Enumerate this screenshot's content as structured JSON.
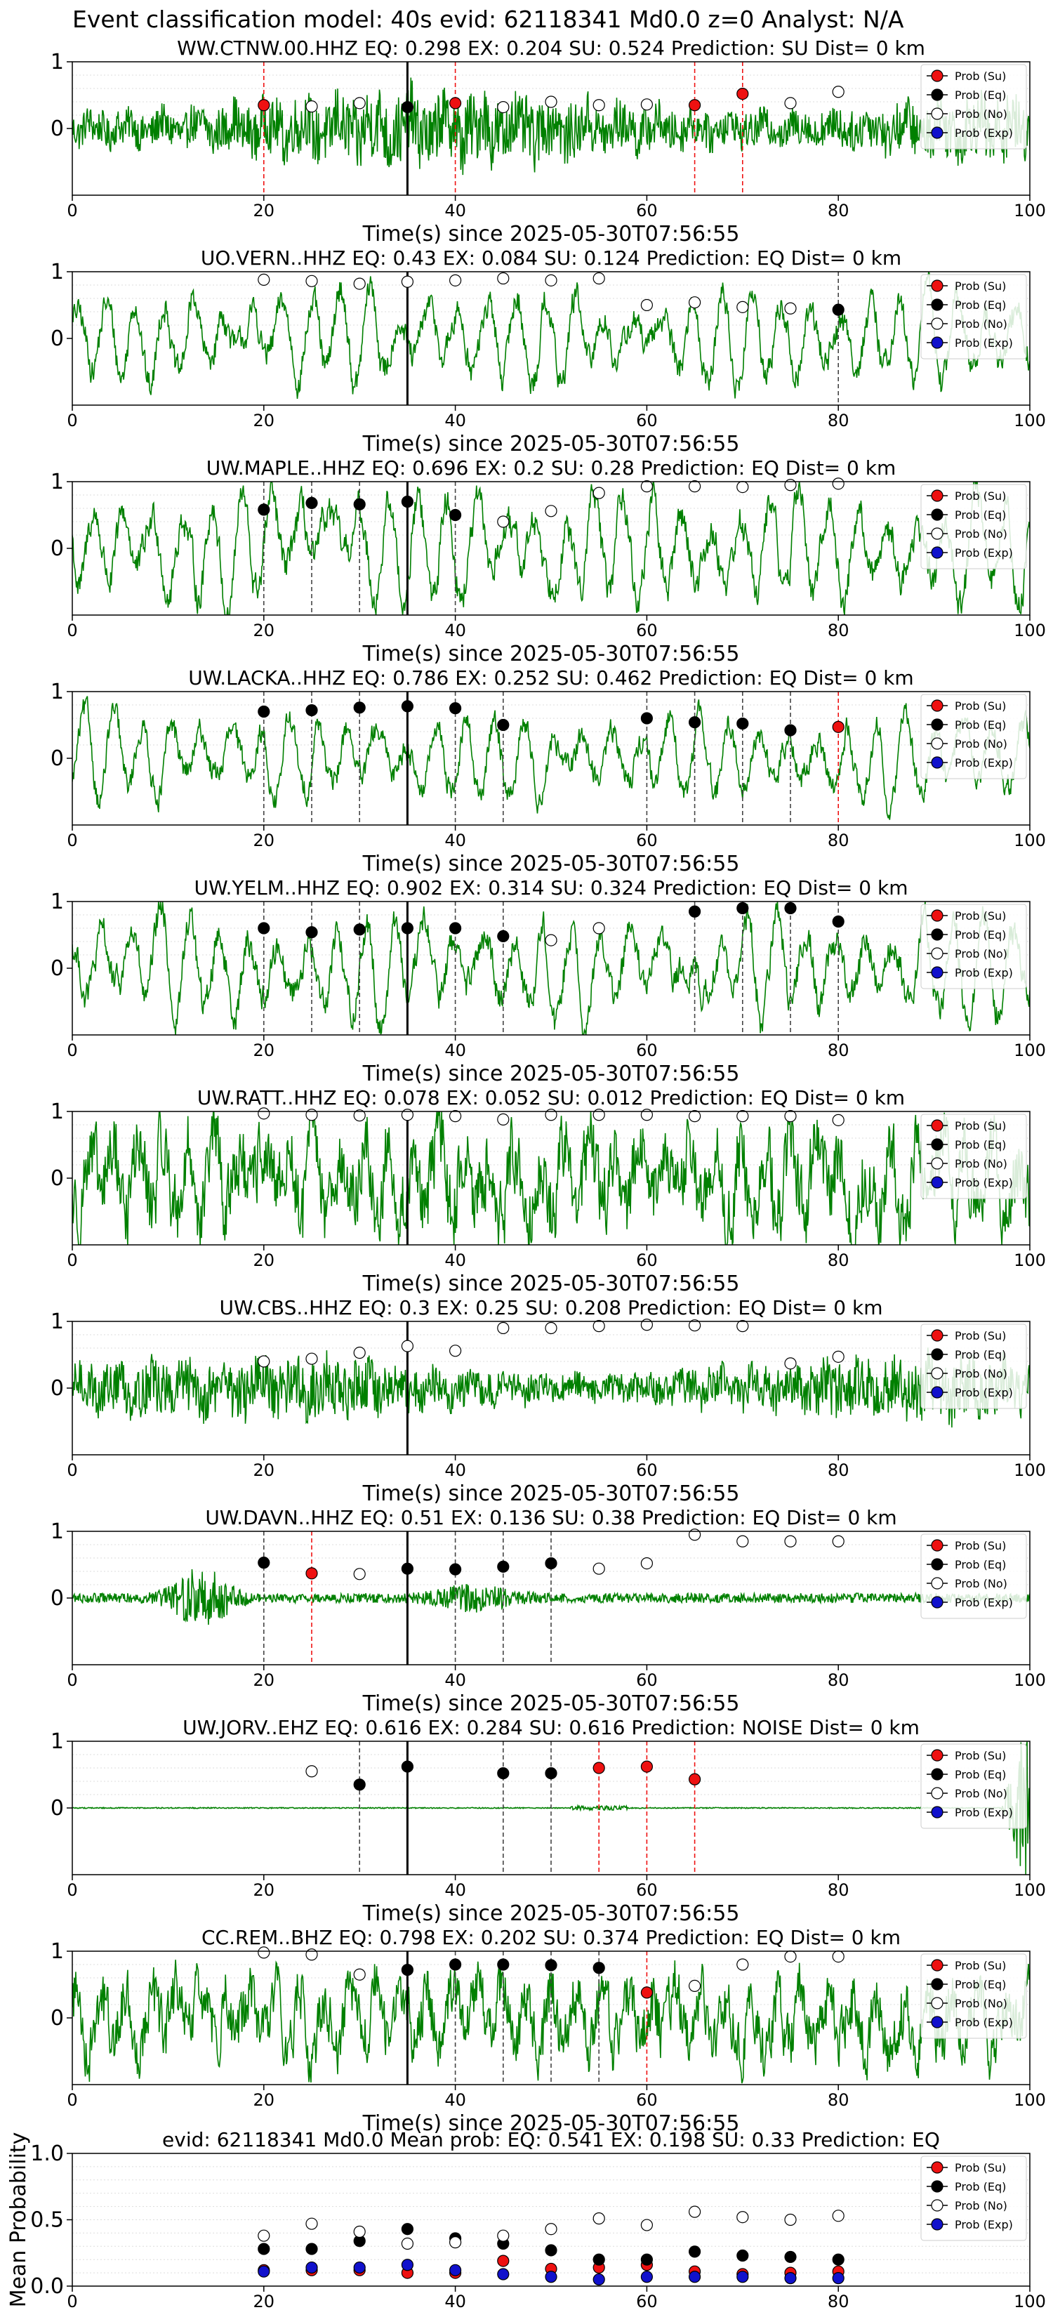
{
  "suptitle": "Event classification model: 40s evid: 62118341 Md0.0 z=0 Analyst: N/A",
  "colors": {
    "waveform": "#008000",
    "su": "#ee1111",
    "eq": "#000000",
    "no": "#ffffff",
    "exp": "#1111cc",
    "su_line": "#ee1111",
    "eq_line": "#444444",
    "arrival": "#000000"
  },
  "legend": {
    "position": "right",
    "entries": [
      {
        "key": "su",
        "label": "Prob (Su)"
      },
      {
        "key": "eq",
        "label": "Prob (Eq)"
      },
      {
        "key": "no",
        "label": "Prob (No)"
      },
      {
        "key": "exp",
        "label": "Prob (Exp)"
      }
    ]
  },
  "chart_data": [
    {
      "type": "line",
      "title": "WW.CTNW.00.HHZ   EQ: 0.298  EX: 0.204  SU: 0.524   Prediction: SU    Dist= 0 km",
      "xlabel": "Time(s) since 2025-05-30T07:56:55",
      "xlim": [
        0,
        100
      ],
      "ylim": [
        -1,
        1
      ],
      "xticks": [
        0,
        20,
        40,
        60,
        80,
        100
      ],
      "yticks": [
        0,
        1
      ],
      "arrival": 35,
      "noise": "broadband",
      "amplitude": 0.55,
      "points": [
        {
          "x": 20,
          "y": 0.35,
          "cls": "su"
        },
        {
          "x": 25,
          "y": 0.33,
          "cls": "no"
        },
        {
          "x": 30,
          "y": 0.38,
          "cls": "no"
        },
        {
          "x": 35,
          "y": 0.32,
          "cls": "eq"
        },
        {
          "x": 40,
          "y": 0.38,
          "cls": "su"
        },
        {
          "x": 45,
          "y": 0.32,
          "cls": "no"
        },
        {
          "x": 50,
          "y": 0.4,
          "cls": "no"
        },
        {
          "x": 55,
          "y": 0.35,
          "cls": "no"
        },
        {
          "x": 60,
          "y": 0.36,
          "cls": "no"
        },
        {
          "x": 65,
          "y": 0.35,
          "cls": "su"
        },
        {
          "x": 70,
          "y": 0.52,
          "cls": "su"
        },
        {
          "x": 75,
          "y": 0.38,
          "cls": "no"
        },
        {
          "x": 80,
          "y": 0.55,
          "cls": "no"
        }
      ]
    },
    {
      "type": "line",
      "title": "UO.VERN..HHZ   EQ: 0.43  EX: 0.084  SU: 0.124   Prediction: EQ    Dist= 0 km",
      "xlabel": "Time(s) since 2025-05-30T07:56:55",
      "xlim": [
        0,
        100
      ],
      "ylim": [
        -1,
        1
      ],
      "xticks": [
        0,
        20,
        40,
        60,
        80,
        100
      ],
      "yticks": [
        0,
        1
      ],
      "arrival": 35,
      "noise": "microseism",
      "amplitude": 0.7,
      "points": [
        {
          "x": 20,
          "y": 0.88,
          "cls": "no"
        },
        {
          "x": 25,
          "y": 0.86,
          "cls": "no"
        },
        {
          "x": 30,
          "y": 0.82,
          "cls": "no"
        },
        {
          "x": 35,
          "y": 0.85,
          "cls": "no"
        },
        {
          "x": 40,
          "y": 0.87,
          "cls": "no"
        },
        {
          "x": 45,
          "y": 0.9,
          "cls": "no"
        },
        {
          "x": 50,
          "y": 0.87,
          "cls": "no"
        },
        {
          "x": 55,
          "y": 0.9,
          "cls": "no"
        },
        {
          "x": 60,
          "y": 0.5,
          "cls": "no"
        },
        {
          "x": 65,
          "y": 0.54,
          "cls": "no"
        },
        {
          "x": 70,
          "y": 0.47,
          "cls": "no"
        },
        {
          "x": 75,
          "y": 0.45,
          "cls": "no"
        },
        {
          "x": 80,
          "y": 0.43,
          "cls": "eq"
        }
      ]
    },
    {
      "type": "line",
      "title": "UW.MAPLE..HHZ   EQ: 0.696  EX: 0.2  SU: 0.28   Prediction: EQ    Dist= 0 km",
      "xlabel": "Time(s) since 2025-05-30T07:56:55",
      "xlim": [
        0,
        100
      ],
      "ylim": [
        -1,
        1
      ],
      "xticks": [
        0,
        20,
        40,
        60,
        80,
        100
      ],
      "yticks": [
        0,
        1
      ],
      "arrival": 35,
      "noise": "microseism",
      "amplitude": 0.8,
      "points": [
        {
          "x": 20,
          "y": 0.58,
          "cls": "eq"
        },
        {
          "x": 25,
          "y": 0.68,
          "cls": "eq"
        },
        {
          "x": 30,
          "y": 0.66,
          "cls": "eq"
        },
        {
          "x": 35,
          "y": 0.7,
          "cls": "eq"
        },
        {
          "x": 40,
          "y": 0.5,
          "cls": "eq"
        },
        {
          "x": 45,
          "y": 0.4,
          "cls": "no"
        },
        {
          "x": 50,
          "y": 0.56,
          "cls": "no"
        },
        {
          "x": 55,
          "y": 0.83,
          "cls": "no"
        },
        {
          "x": 60,
          "y": 0.93,
          "cls": "no"
        },
        {
          "x": 65,
          "y": 0.93,
          "cls": "no"
        },
        {
          "x": 70,
          "y": 0.92,
          "cls": "no"
        },
        {
          "x": 75,
          "y": 0.95,
          "cls": "no"
        },
        {
          "x": 80,
          "y": 0.97,
          "cls": "no"
        }
      ]
    },
    {
      "type": "line",
      "title": "UW.LACKA..HHZ   EQ: 0.786  EX: 0.252  SU: 0.462   Prediction: EQ    Dist= 0 km",
      "xlabel": "Time(s) since 2025-05-30T07:56:55",
      "xlim": [
        0,
        100
      ],
      "ylim": [
        -1,
        1
      ],
      "xticks": [
        0,
        20,
        40,
        60,
        80,
        100
      ],
      "yticks": [
        0,
        1
      ],
      "arrival": 35,
      "noise": "microseism",
      "amplitude": 0.6,
      "points": [
        {
          "x": 20,
          "y": 0.7,
          "cls": "eq"
        },
        {
          "x": 25,
          "y": 0.72,
          "cls": "eq"
        },
        {
          "x": 30,
          "y": 0.76,
          "cls": "eq"
        },
        {
          "x": 35,
          "y": 0.78,
          "cls": "eq"
        },
        {
          "x": 40,
          "y": 0.75,
          "cls": "eq"
        },
        {
          "x": 45,
          "y": 0.5,
          "cls": "eq"
        },
        {
          "x": 60,
          "y": 0.6,
          "cls": "eq"
        },
        {
          "x": 65,
          "y": 0.54,
          "cls": "eq"
        },
        {
          "x": 70,
          "y": 0.52,
          "cls": "eq"
        },
        {
          "x": 75,
          "y": 0.42,
          "cls": "eq"
        },
        {
          "x": 80,
          "y": 0.47,
          "cls": "su"
        }
      ]
    },
    {
      "type": "line",
      "title": "UW.YELM..HHZ   EQ: 0.902  EX: 0.314  SU: 0.324   Prediction: EQ    Dist= 0 km",
      "xlabel": "Time(s) since 2025-05-30T07:56:55",
      "xlim": [
        0,
        100
      ],
      "ylim": [
        -1,
        1
      ],
      "xticks": [
        0,
        20,
        40,
        60,
        80,
        100
      ],
      "yticks": [
        0,
        1
      ],
      "arrival": 35,
      "noise": "microseism",
      "amplitude": 0.75,
      "points": [
        {
          "x": 20,
          "y": 0.6,
          "cls": "eq"
        },
        {
          "x": 25,
          "y": 0.54,
          "cls": "eq"
        },
        {
          "x": 30,
          "y": 0.58,
          "cls": "eq"
        },
        {
          "x": 35,
          "y": 0.6,
          "cls": "eq"
        },
        {
          "x": 40,
          "y": 0.6,
          "cls": "eq"
        },
        {
          "x": 45,
          "y": 0.48,
          "cls": "eq"
        },
        {
          "x": 50,
          "y": 0.42,
          "cls": "no"
        },
        {
          "x": 55,
          "y": 0.6,
          "cls": "no"
        },
        {
          "x": 65,
          "y": 0.85,
          "cls": "eq"
        },
        {
          "x": 70,
          "y": 0.9,
          "cls": "eq"
        },
        {
          "x": 75,
          "y": 0.9,
          "cls": "eq"
        },
        {
          "x": 80,
          "y": 0.7,
          "cls": "eq"
        }
      ]
    },
    {
      "type": "line",
      "title": "UW.RATT..HHZ   EQ: 0.078  EX: 0.052  SU: 0.012   Prediction: EQ    Dist= 0 km",
      "xlabel": "Time(s) since 2025-05-30T07:56:55",
      "xlim": [
        0,
        100
      ],
      "ylim": [
        -1,
        1
      ],
      "xticks": [
        0,
        20,
        40,
        60,
        80,
        100
      ],
      "yticks": [
        0,
        1
      ],
      "arrival": 35,
      "noise": "mixed",
      "amplitude": 0.85,
      "points": [
        {
          "x": 20,
          "y": 0.97,
          "cls": "no"
        },
        {
          "x": 25,
          "y": 0.95,
          "cls": "no"
        },
        {
          "x": 30,
          "y": 0.94,
          "cls": "no"
        },
        {
          "x": 35,
          "y": 0.95,
          "cls": "no"
        },
        {
          "x": 40,
          "y": 0.93,
          "cls": "no"
        },
        {
          "x": 45,
          "y": 0.88,
          "cls": "no"
        },
        {
          "x": 50,
          "y": 0.95,
          "cls": "no"
        },
        {
          "x": 55,
          "y": 0.95,
          "cls": "no"
        },
        {
          "x": 60,
          "y": 0.95,
          "cls": "no"
        },
        {
          "x": 65,
          "y": 0.93,
          "cls": "no"
        },
        {
          "x": 70,
          "y": 0.93,
          "cls": "no"
        },
        {
          "x": 75,
          "y": 0.93,
          "cls": "no"
        },
        {
          "x": 80,
          "y": 0.87,
          "cls": "no"
        }
      ]
    },
    {
      "type": "line",
      "title": "UW.CBS..HHZ   EQ: 0.3  EX: 0.25  SU: 0.208   Prediction: EQ    Dist= 0 km",
      "xlabel": "Time(s) since 2025-05-30T07:56:55",
      "xlim": [
        0,
        100
      ],
      "ylim": [
        -1,
        1
      ],
      "xticks": [
        0,
        20,
        40,
        60,
        80,
        100
      ],
      "yticks": [
        0,
        1
      ],
      "arrival": 35,
      "noise": "broadband",
      "amplitude": 0.45,
      "points": [
        {
          "x": 20,
          "y": 0.4,
          "cls": "no"
        },
        {
          "x": 25,
          "y": 0.44,
          "cls": "no"
        },
        {
          "x": 30,
          "y": 0.53,
          "cls": "no"
        },
        {
          "x": 35,
          "y": 0.63,
          "cls": "no"
        },
        {
          "x": 40,
          "y": 0.56,
          "cls": "no"
        },
        {
          "x": 45,
          "y": 0.9,
          "cls": "no"
        },
        {
          "x": 50,
          "y": 0.9,
          "cls": "no"
        },
        {
          "x": 55,
          "y": 0.93,
          "cls": "no"
        },
        {
          "x": 60,
          "y": 0.95,
          "cls": "no"
        },
        {
          "x": 65,
          "y": 0.94,
          "cls": "no"
        },
        {
          "x": 70,
          "y": 0.93,
          "cls": "no"
        },
        {
          "x": 75,
          "y": 0.37,
          "cls": "no"
        },
        {
          "x": 80,
          "y": 0.47,
          "cls": "no"
        }
      ]
    },
    {
      "type": "line",
      "title": "UW.DAVN..HHZ   EQ: 0.51  EX: 0.136  SU: 0.38   Prediction: EQ    Dist= 0 km",
      "xlabel": "Time(s) since 2025-05-30T07:56:55",
      "xlim": [
        0,
        100
      ],
      "ylim": [
        -1,
        1
      ],
      "xticks": [
        0,
        20,
        40,
        60,
        80,
        100
      ],
      "yticks": [
        0,
        1
      ],
      "arrival": 35,
      "noise": "burst",
      "amplitude": 0.2,
      "points": [
        {
          "x": 20,
          "y": 0.53,
          "cls": "eq"
        },
        {
          "x": 25,
          "y": 0.37,
          "cls": "su"
        },
        {
          "x": 30,
          "y": 0.36,
          "cls": "no"
        },
        {
          "x": 35,
          "y": 0.44,
          "cls": "eq"
        },
        {
          "x": 40,
          "y": 0.43,
          "cls": "eq"
        },
        {
          "x": 45,
          "y": 0.47,
          "cls": "eq"
        },
        {
          "x": 50,
          "y": 0.52,
          "cls": "eq"
        },
        {
          "x": 55,
          "y": 0.44,
          "cls": "no"
        },
        {
          "x": 60,
          "y": 0.52,
          "cls": "no"
        },
        {
          "x": 65,
          "y": 0.95,
          "cls": "no"
        },
        {
          "x": 70,
          "y": 0.85,
          "cls": "no"
        },
        {
          "x": 75,
          "y": 0.85,
          "cls": "no"
        },
        {
          "x": 80,
          "y": 0.85,
          "cls": "no"
        }
      ]
    },
    {
      "type": "line",
      "title": "UW.JORV..EHZ   EQ: 0.616  EX: 0.284  SU: 0.616   Prediction: NOISE    Dist= 0 km",
      "xlabel": "Time(s) since 2025-05-30T07:56:55",
      "xlim": [
        0,
        100
      ],
      "ylim": [
        -1,
        1
      ],
      "xticks": [
        0,
        20,
        40,
        60,
        80,
        100
      ],
      "yticks": [
        0,
        1
      ],
      "arrival": 35,
      "noise": "quiet",
      "amplitude": 0.02,
      "points": [
        {
          "x": 25,
          "y": 0.55,
          "cls": "no"
        },
        {
          "x": 30,
          "y": 0.35,
          "cls": "eq"
        },
        {
          "x": 35,
          "y": 0.62,
          "cls": "eq"
        },
        {
          "x": 45,
          "y": 0.52,
          "cls": "eq"
        },
        {
          "x": 50,
          "y": 0.52,
          "cls": "eq"
        },
        {
          "x": 55,
          "y": 0.6,
          "cls": "su"
        },
        {
          "x": 60,
          "y": 0.62,
          "cls": "su"
        },
        {
          "x": 65,
          "y": 0.43,
          "cls": "su"
        }
      ]
    },
    {
      "type": "line",
      "title": "CC.REM..BHZ   EQ: 0.798  EX: 0.202  SU: 0.374   Prediction: EQ    Dist= 0 km",
      "xlabel": "Time(s) since 2025-05-30T07:56:55",
      "xlim": [
        0,
        100
      ],
      "ylim": [
        -1,
        1
      ],
      "xticks": [
        0,
        20,
        40,
        60,
        80,
        100
      ],
      "yticks": [
        0,
        1
      ],
      "arrival": 35,
      "noise": "mixed",
      "amplitude": 0.65,
      "points": [
        {
          "x": 20,
          "y": 0.98,
          "cls": "no"
        },
        {
          "x": 25,
          "y": 0.95,
          "cls": "no"
        },
        {
          "x": 30,
          "y": 0.65,
          "cls": "no"
        },
        {
          "x": 35,
          "y": 0.72,
          "cls": "eq"
        },
        {
          "x": 40,
          "y": 0.8,
          "cls": "eq"
        },
        {
          "x": 45,
          "y": 0.8,
          "cls": "eq"
        },
        {
          "x": 50,
          "y": 0.79,
          "cls": "eq"
        },
        {
          "x": 55,
          "y": 0.75,
          "cls": "eq"
        },
        {
          "x": 60,
          "y": 0.38,
          "cls": "su"
        },
        {
          "x": 65,
          "y": 0.48,
          "cls": "no"
        },
        {
          "x": 70,
          "y": 0.8,
          "cls": "no"
        },
        {
          "x": 75,
          "y": 0.92,
          "cls": "no"
        },
        {
          "x": 80,
          "y": 0.92,
          "cls": "no"
        }
      ]
    },
    {
      "type": "scatter",
      "title": "evid: 62118341   Md0.0    Mean prob:    EQ: 0.541  EX: 0.198  SU: 0.33   Prediction: EQ",
      "ylabel": "Mean Probability",
      "xlim": [
        0,
        100
      ],
      "ylim": [
        0,
        1
      ],
      "xticks": [
        0,
        20,
        40,
        60,
        80,
        100
      ],
      "yticks": [
        0.0,
        0.5,
        1.0
      ],
      "series": [
        {
          "name": "Prob (Su)",
          "key": "su",
          "x": [
            20,
            25,
            30,
            35,
            40,
            45,
            50,
            55,
            60,
            65,
            70,
            75,
            80
          ],
          "y": [
            0.12,
            0.12,
            0.12,
            0.1,
            0.1,
            0.19,
            0.13,
            0.14,
            0.16,
            0.11,
            0.09,
            0.1,
            0.11
          ]
        },
        {
          "name": "Prob (Eq)",
          "key": "eq",
          "x": [
            20,
            25,
            30,
            35,
            40,
            45,
            50,
            55,
            60,
            65,
            70,
            75,
            80
          ],
          "y": [
            0.28,
            0.28,
            0.34,
            0.43,
            0.36,
            0.32,
            0.27,
            0.2,
            0.2,
            0.26,
            0.23,
            0.22,
            0.2
          ]
        },
        {
          "name": "Prob (No)",
          "key": "no",
          "x": [
            20,
            25,
            30,
            35,
            40,
            45,
            50,
            55,
            60,
            65,
            70,
            75,
            80
          ],
          "y": [
            0.38,
            0.47,
            0.41,
            0.32,
            0.33,
            0.38,
            0.43,
            0.51,
            0.46,
            0.56,
            0.52,
            0.5,
            0.53
          ]
        },
        {
          "name": "Prob (Exp)",
          "key": "exp",
          "x": [
            20,
            25,
            30,
            35,
            40,
            45,
            50,
            55,
            60,
            65,
            70,
            75,
            80
          ],
          "y": [
            0.11,
            0.14,
            0.14,
            0.16,
            0.12,
            0.09,
            0.07,
            0.05,
            0.07,
            0.07,
            0.07,
            0.06,
            0.06
          ]
        }
      ]
    }
  ]
}
